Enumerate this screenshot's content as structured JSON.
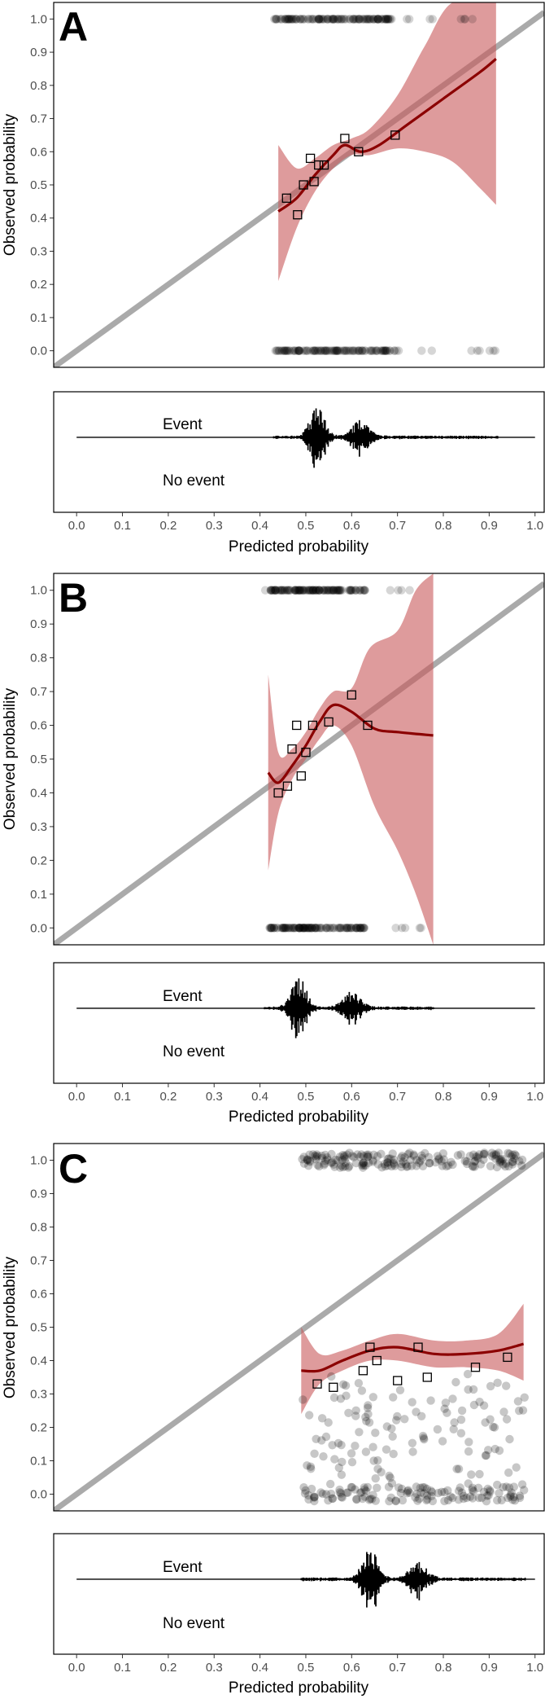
{
  "chart_data": [
    {
      "type": "scatter",
      "panel": "A",
      "xlabel": "Predicted probability",
      "ylabel": "Observed probability",
      "xlim": [
        -0.05,
        1.02
      ],
      "ylim": [
        -0.05,
        1.05
      ],
      "xticks": [
        "0.0",
        "0.1",
        "0.2",
        "0.3",
        "0.4",
        "0.5",
        "0.6",
        "0.7",
        "0.8",
        "0.9",
        "1.0"
      ],
      "yticks": [
        "0.0",
        "0.1",
        "0.2",
        "0.3",
        "0.4",
        "0.5",
        "0.6",
        "0.7",
        "0.8",
        "0.9",
        "1.0"
      ],
      "reference_line": "y = x",
      "grouped_points": [
        {
          "x": 0.458,
          "y": 0.46
        },
        {
          "x": 0.482,
          "y": 0.41
        },
        {
          "x": 0.495,
          "y": 0.5
        },
        {
          "x": 0.51,
          "y": 0.58
        },
        {
          "x": 0.518,
          "y": 0.51
        },
        {
          "x": 0.528,
          "y": 0.56
        },
        {
          "x": 0.54,
          "y": 0.56
        },
        {
          "x": 0.585,
          "y": 0.64
        },
        {
          "x": 0.615,
          "y": 0.6
        },
        {
          "x": 0.695,
          "y": 0.65
        }
      ],
      "smooth_curve": [
        {
          "x": 0.44,
          "y": 0.42
        },
        {
          "x": 0.48,
          "y": 0.46
        },
        {
          "x": 0.52,
          "y": 0.53
        },
        {
          "x": 0.56,
          "y": 0.59
        },
        {
          "x": 0.585,
          "y": 0.62
        },
        {
          "x": 0.62,
          "y": 0.6
        },
        {
          "x": 0.66,
          "y": 0.62
        },
        {
          "x": 0.72,
          "y": 0.68
        },
        {
          "x": 0.8,
          "y": 0.76
        },
        {
          "x": 0.88,
          "y": 0.84
        },
        {
          "x": 0.915,
          "y": 0.88
        }
      ],
      "ci_upper": [
        {
          "x": 0.44,
          "y": 0.62
        },
        {
          "x": 0.48,
          "y": 0.55
        },
        {
          "x": 0.52,
          "y": 0.58
        },
        {
          "x": 0.56,
          "y": 0.62
        },
        {
          "x": 0.6,
          "y": 0.64
        },
        {
          "x": 0.64,
          "y": 0.67
        },
        {
          "x": 0.7,
          "y": 0.77
        },
        {
          "x": 0.76,
          "y": 0.92
        },
        {
          "x": 0.82,
          "y": 1.05
        },
        {
          "x": 0.915,
          "y": 1.05
        }
      ],
      "ci_lower": [
        {
          "x": 0.44,
          "y": 0.21
        },
        {
          "x": 0.48,
          "y": 0.37
        },
        {
          "x": 0.52,
          "y": 0.48
        },
        {
          "x": 0.56,
          "y": 0.55
        },
        {
          "x": 0.6,
          "y": 0.59
        },
        {
          "x": 0.64,
          "y": 0.59
        },
        {
          "x": 0.7,
          "y": 0.61
        },
        {
          "x": 0.76,
          "y": 0.6
        },
        {
          "x": 0.82,
          "y": 0.57
        },
        {
          "x": 0.88,
          "y": 0.49
        },
        {
          "x": 0.915,
          "y": 0.44
        }
      ],
      "rug_range": [
        0.44,
        0.92
      ],
      "rug_dense": [
        0.43,
        0.69
      ],
      "histogram": {
        "labels": [
          "Event",
          "No event"
        ],
        "range": [
          0.43,
          0.92
        ],
        "peak": 0.525,
        "secondary_peak": 0.62,
        "max_up": 1.0,
        "max_down": 0.9
      }
    },
    {
      "type": "scatter",
      "panel": "B",
      "xlabel": "Predicted probability",
      "ylabel": "Observed probability",
      "xlim": [
        -0.05,
        1.02
      ],
      "ylim": [
        -0.05,
        1.05
      ],
      "xticks": [
        "0.0",
        "0.1",
        "0.2",
        "0.3",
        "0.4",
        "0.5",
        "0.6",
        "0.7",
        "0.8",
        "0.9",
        "1.0"
      ],
      "yticks": [
        "0.0",
        "0.1",
        "0.2",
        "0.3",
        "0.4",
        "0.5",
        "0.6",
        "0.7",
        "0.8",
        "0.9",
        "1.0"
      ],
      "reference_line": "y = x",
      "grouped_points": [
        {
          "x": 0.44,
          "y": 0.4
        },
        {
          "x": 0.46,
          "y": 0.42
        },
        {
          "x": 0.47,
          "y": 0.53
        },
        {
          "x": 0.48,
          "y": 0.6
        },
        {
          "x": 0.49,
          "y": 0.45
        },
        {
          "x": 0.5,
          "y": 0.52
        },
        {
          "x": 0.515,
          "y": 0.6
        },
        {
          "x": 0.55,
          "y": 0.61
        },
        {
          "x": 0.6,
          "y": 0.69
        },
        {
          "x": 0.635,
          "y": 0.6
        }
      ],
      "smooth_curve": [
        {
          "x": 0.418,
          "y": 0.46
        },
        {
          "x": 0.44,
          "y": 0.43
        },
        {
          "x": 0.47,
          "y": 0.48
        },
        {
          "x": 0.5,
          "y": 0.54
        },
        {
          "x": 0.53,
          "y": 0.61
        },
        {
          "x": 0.56,
          "y": 0.66
        },
        {
          "x": 0.6,
          "y": 0.64
        },
        {
          "x": 0.65,
          "y": 0.59
        },
        {
          "x": 0.7,
          "y": 0.58
        },
        {
          "x": 0.778,
          "y": 0.57
        }
      ],
      "ci_upper": [
        {
          "x": 0.418,
          "y": 0.75
        },
        {
          "x": 0.44,
          "y": 0.52
        },
        {
          "x": 0.47,
          "y": 0.53
        },
        {
          "x": 0.5,
          "y": 0.58
        },
        {
          "x": 0.53,
          "y": 0.65
        },
        {
          "x": 0.56,
          "y": 0.7
        },
        {
          "x": 0.6,
          "y": 0.71
        },
        {
          "x": 0.64,
          "y": 0.83
        },
        {
          "x": 0.7,
          "y": 0.88
        },
        {
          "x": 0.74,
          "y": 1.0
        },
        {
          "x": 0.778,
          "y": 1.05
        }
      ],
      "ci_lower": [
        {
          "x": 0.418,
          "y": 0.17
        },
        {
          "x": 0.44,
          "y": 0.34
        },
        {
          "x": 0.47,
          "y": 0.44
        },
        {
          "x": 0.5,
          "y": 0.5
        },
        {
          "x": 0.53,
          "y": 0.56
        },
        {
          "x": 0.56,
          "y": 0.6
        },
        {
          "x": 0.6,
          "y": 0.54
        },
        {
          "x": 0.65,
          "y": 0.36
        },
        {
          "x": 0.7,
          "y": 0.23
        },
        {
          "x": 0.74,
          "y": 0.1
        },
        {
          "x": 0.778,
          "y": -0.05
        }
      ],
      "rug_range": [
        0.41,
        0.78
      ],
      "rug_dense": [
        0.42,
        0.63
      ],
      "histogram": {
        "labels": [
          "Event",
          "No event"
        ],
        "range": [
          0.41,
          0.78
        ],
        "peak": 0.485,
        "secondary_peak": 0.6,
        "max_up": 1.0,
        "max_down": 0.9
      }
    },
    {
      "type": "scatter",
      "panel": "C",
      "xlabel": "Predicted probability",
      "ylabel": "Observed probability",
      "xlim": [
        -0.05,
        1.02
      ],
      "ylim": [
        -0.05,
        1.05
      ],
      "xticks": [
        "0.0",
        "0.1",
        "0.2",
        "0.3",
        "0.4",
        "0.5",
        "0.6",
        "0.7",
        "0.8",
        "0.9",
        "1.0"
      ],
      "yticks": [
        "0.0",
        "0.1",
        "0.2",
        "0.3",
        "0.4",
        "0.5",
        "0.6",
        "0.7",
        "0.8",
        "0.9",
        "1.0"
      ],
      "reference_line": "y = x",
      "grouped_points": [
        {
          "x": 0.525,
          "y": 0.33
        },
        {
          "x": 0.56,
          "y": 0.32
        },
        {
          "x": 0.625,
          "y": 0.37
        },
        {
          "x": 0.64,
          "y": 0.44
        },
        {
          "x": 0.655,
          "y": 0.4
        },
        {
          "x": 0.7,
          "y": 0.34
        },
        {
          "x": 0.745,
          "y": 0.44
        },
        {
          "x": 0.765,
          "y": 0.35
        },
        {
          "x": 0.87,
          "y": 0.38
        },
        {
          "x": 0.94,
          "y": 0.41
        }
      ],
      "smooth_curve": [
        {
          "x": 0.49,
          "y": 0.37
        },
        {
          "x": 0.53,
          "y": 0.37
        },
        {
          "x": 0.58,
          "y": 0.4
        },
        {
          "x": 0.64,
          "y": 0.43
        },
        {
          "x": 0.7,
          "y": 0.44
        },
        {
          "x": 0.78,
          "y": 0.42
        },
        {
          "x": 0.85,
          "y": 0.42
        },
        {
          "x": 0.92,
          "y": 0.43
        },
        {
          "x": 0.975,
          "y": 0.45
        }
      ],
      "ci_upper": [
        {
          "x": 0.49,
          "y": 0.5
        },
        {
          "x": 0.53,
          "y": 0.42
        },
        {
          "x": 0.58,
          "y": 0.43
        },
        {
          "x": 0.64,
          "y": 0.46
        },
        {
          "x": 0.7,
          "y": 0.48
        },
        {
          "x": 0.78,
          "y": 0.46
        },
        {
          "x": 0.85,
          "y": 0.46
        },
        {
          "x": 0.92,
          "y": 0.48
        },
        {
          "x": 0.975,
          "y": 0.57
        }
      ],
      "ci_lower": [
        {
          "x": 0.49,
          "y": 0.24
        },
        {
          "x": 0.53,
          "y": 0.33
        },
        {
          "x": 0.58,
          "y": 0.37
        },
        {
          "x": 0.64,
          "y": 0.4
        },
        {
          "x": 0.7,
          "y": 0.4
        },
        {
          "x": 0.78,
          "y": 0.38
        },
        {
          "x": 0.85,
          "y": 0.38
        },
        {
          "x": 0.92,
          "y": 0.37
        },
        {
          "x": 0.975,
          "y": 0.34
        }
      ],
      "rug_range": [
        0.49,
        0.98
      ],
      "rug_dense": [
        0.49,
        0.98
      ],
      "histogram": {
        "labels": [
          "Event",
          "No event"
        ],
        "range": [
          0.49,
          0.98
        ],
        "peak": 0.64,
        "secondary_peak": 0.745,
        "max_up": 1.0,
        "max_down": 1.0
      }
    }
  ],
  "colors": {
    "curve": "#8b0000",
    "ci_band": "#c8585a",
    "reference_line": "#a6a6a6",
    "points": "#000000"
  }
}
